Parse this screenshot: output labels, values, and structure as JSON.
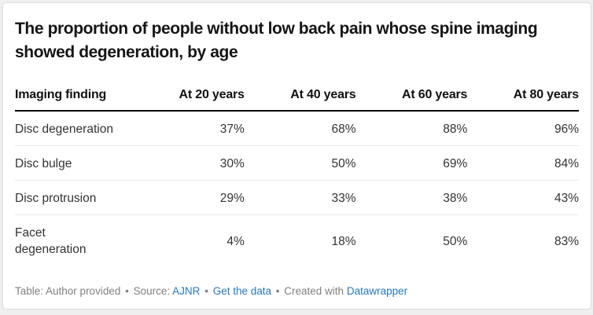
{
  "title": "The proportion of people without low back pain whose spine imaging showed degeneration, by age",
  "chart_data": {
    "type": "table",
    "title": "The proportion of people without low back pain whose spine imaging showed degeneration, by age",
    "columns": [
      "Imaging finding",
      "At 20 years",
      "At 40 years",
      "At 60 years",
      "At 80 years"
    ],
    "rows": [
      {
        "label": "Disc degeneration",
        "values": [
          "37%",
          "68%",
          "88%",
          "96%"
        ]
      },
      {
        "label": "Disc bulge",
        "values": [
          "30%",
          "50%",
          "69%",
          "84%"
        ]
      },
      {
        "label": "Disc protrusion",
        "values": [
          "29%",
          "33%",
          "38%",
          "43%"
        ]
      },
      {
        "label": "Facet\ndegeneration",
        "values": [
          "4%",
          "18%",
          "50%",
          "83%"
        ]
      }
    ],
    "numeric": {
      "unit": "percent",
      "ages": [
        20,
        40,
        60,
        80
      ],
      "series": [
        {
          "name": "Disc degeneration",
          "values": [
            37,
            68,
            88,
            96
          ]
        },
        {
          "name": "Disc bulge",
          "values": [
            30,
            50,
            69,
            84
          ]
        },
        {
          "name": "Disc protrusion",
          "values": [
            29,
            33,
            38,
            43
          ]
        },
        {
          "name": "Facet degeneration",
          "values": [
            4,
            18,
            50,
            83
          ]
        }
      ]
    }
  },
  "footer": {
    "credit": "Table: Author provided",
    "separator": "•",
    "source_label": "Source:",
    "source_link": "AJNR",
    "get_data_link": "Get the data",
    "created_with_label": "Created with",
    "tool_link": "Datawrapper"
  },
  "colors": {
    "title_text": "#151515",
    "header_text": "#111111",
    "body_text": "#333333",
    "link_blue": "#2579c4",
    "footer_text": "#808080",
    "header_rule": "#000000",
    "row_divider": "#e9e9e9",
    "card_border": "#dcdcdc",
    "card_background": "#ffffff",
    "page_background": "#efefef"
  }
}
